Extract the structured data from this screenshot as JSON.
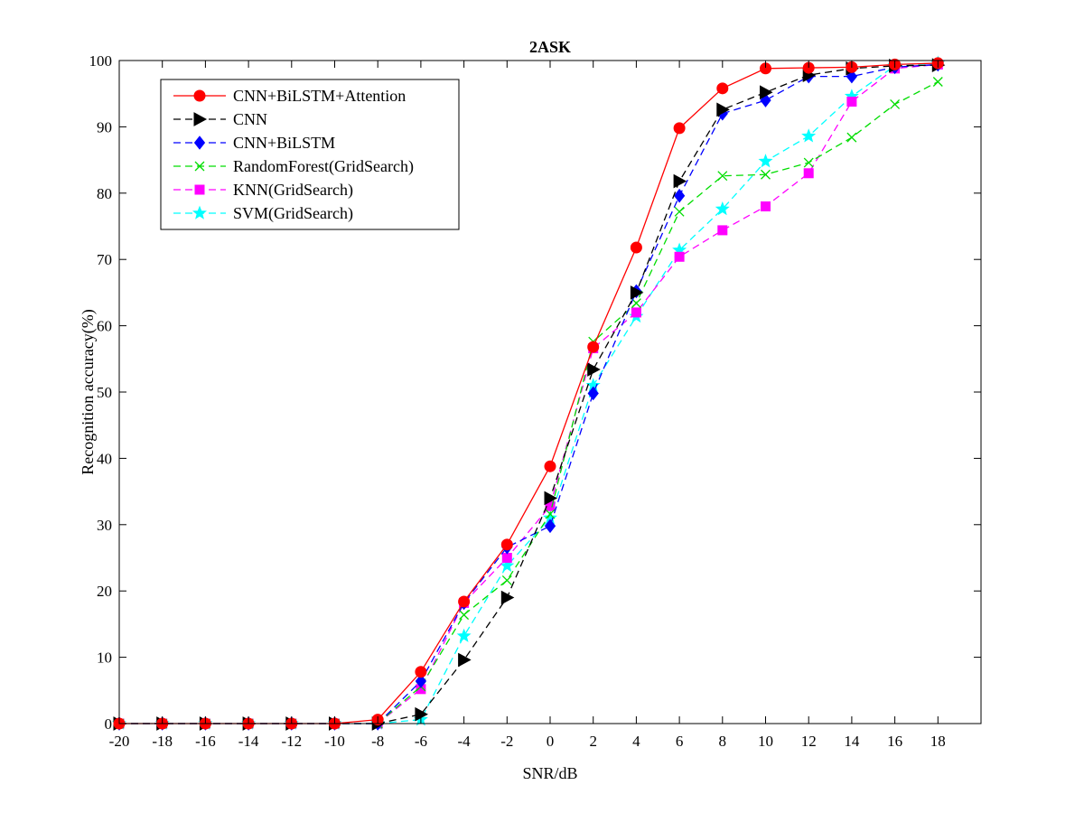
{
  "chart_data": {
    "type": "line",
    "title": "2ASK",
    "xlabel": "SNR/dB",
    "ylabel": "Recognition accuracy(%)",
    "xlim": [
      -20,
      20
    ],
    "ylim": [
      0,
      100
    ],
    "xticks": [
      -20,
      -18,
      -16,
      -14,
      -12,
      -10,
      -8,
      -6,
      -4,
      -2,
      0,
      2,
      4,
      6,
      8,
      10,
      12,
      14,
      16,
      18
    ],
    "yticks": [
      0,
      10,
      20,
      30,
      40,
      50,
      60,
      70,
      80,
      90,
      100
    ],
    "x": [
      -20,
      -18,
      -16,
      -14,
      -12,
      -10,
      -8,
      -6,
      -4,
      -2,
      0,
      2,
      4,
      6,
      8,
      10,
      12,
      14,
      16,
      18
    ],
    "legend_position": "top-left",
    "series": [
      {
        "name": "CNN+BiLSTM+Attention",
        "color": "#ff0000",
        "line_style": "solid",
        "marker": "circle",
        "values": [
          0,
          0,
          0,
          0,
          0,
          0,
          0.6,
          7.8,
          18.4,
          27.0,
          38.8,
          56.8,
          71.8,
          89.8,
          95.8,
          98.8,
          98.9,
          99.0,
          99.4,
          99.6
        ]
      },
      {
        "name": "CNN",
        "color": "#000000",
        "line_style": "dashed",
        "marker": "triangle-right",
        "values": [
          0,
          0,
          0,
          0,
          0,
          0,
          0,
          1.4,
          9.6,
          19.0,
          34.0,
          53.4,
          65.0,
          81.8,
          92.6,
          95.2,
          97.8,
          98.8,
          99.2,
          99.3
        ]
      },
      {
        "name": "CNN+BiLSTM",
        "color": "#0000ff",
        "line_style": "dashed",
        "marker": "diamond",
        "values": [
          0,
          0,
          0,
          0,
          0,
          0,
          0,
          6.4,
          18.2,
          26.6,
          29.8,
          49.8,
          65.2,
          79.6,
          92.0,
          94.0,
          97.6,
          97.6,
          99.0,
          99.4
        ]
      },
      {
        "name": "RandomForest(GridSearch)",
        "color": "#00dd00",
        "line_style": "dashed",
        "marker": "x",
        "values": [
          0,
          0,
          0,
          0,
          0,
          0,
          0,
          5.6,
          16.4,
          21.6,
          31.6,
          57.6,
          63.4,
          77.2,
          82.6,
          82.8,
          84.6,
          88.4,
          93.4,
          96.8
        ]
      },
      {
        "name": "KNN(GridSearch)",
        "color": "#ff00ff",
        "line_style": "dashed",
        "marker": "square",
        "values": [
          0,
          0,
          0,
          0,
          0,
          0,
          0,
          5.2,
          18.2,
          25.0,
          32.8,
          56.6,
          62.0,
          70.4,
          74.4,
          78.0,
          83.0,
          93.8,
          98.8,
          99.4
        ]
      },
      {
        "name": "SVM(GridSearch)",
        "color": "#00ffff",
        "line_style": "dashed",
        "marker": "star",
        "values": [
          0,
          0,
          0,
          0,
          0,
          0,
          0,
          0.6,
          13.2,
          23.8,
          31.0,
          51.0,
          61.4,
          71.4,
          77.6,
          84.8,
          88.6,
          94.6,
          99.2,
          99.6
        ]
      }
    ]
  }
}
